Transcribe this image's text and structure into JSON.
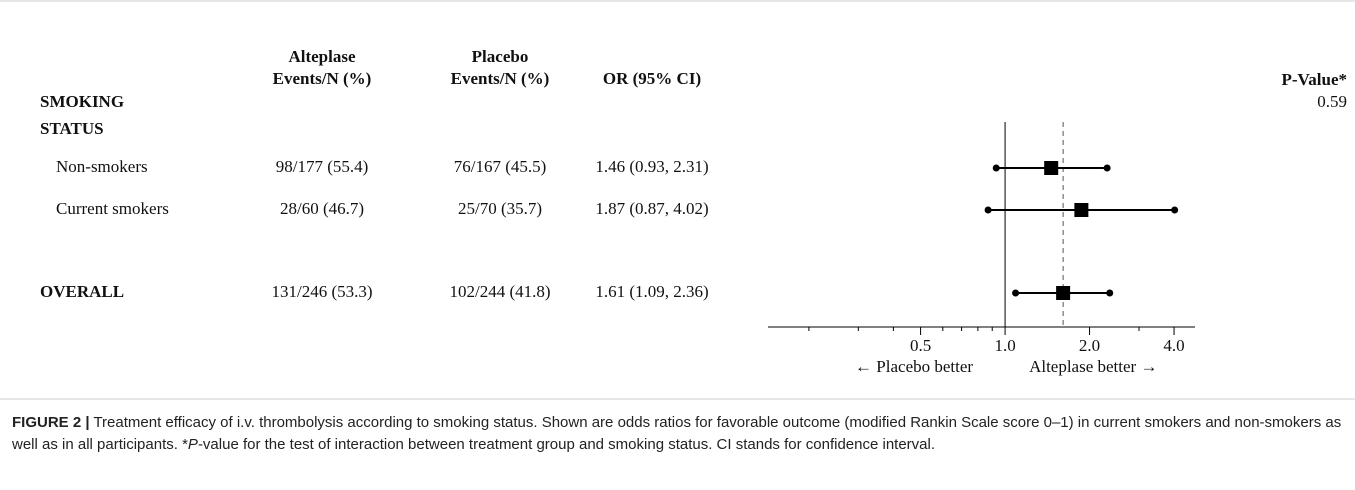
{
  "chart_data": {
    "type": "forest",
    "columns": [
      [
        "Alteplase",
        "Events/N (%)"
      ],
      [
        "Placebo",
        "Events/N (%)"
      ],
      [
        "OR (95% CI)"
      ]
    ],
    "p_value_header": "P-Value*",
    "group": {
      "lines": [
        "SMOKING",
        "STATUS"
      ],
      "p_value": 0.59
    },
    "rows": [
      {
        "label": "Non-smokers",
        "alteplase": "98/177 (55.4)",
        "placebo": "76/167 (45.5)",
        "or_label": "1.46 (0.93, 2.31)",
        "or": 1.46,
        "lo": 0.93,
        "hi": 2.31
      },
      {
        "label": "Current smokers",
        "alteplase": "28/60 (46.7)",
        "placebo": "25/70 (35.7)",
        "or_label": "1.87 (0.87, 4.02)",
        "or": 1.87,
        "lo": 0.87,
        "hi": 4.02
      }
    ],
    "overall": {
      "label": "OVERALL",
      "alteplase": "131/246 (53.3)",
      "placebo": "102/244 (41.8)",
      "or_label": "1.61 (1.09, 2.36)",
      "or": 1.61,
      "lo": 1.09,
      "hi": 2.36
    },
    "log_x": true,
    "xlim": [
      0.143,
      4.75
    ],
    "xticks": [
      0.5,
      {
        "value": 1,
        "label": "1.0"
      },
      {
        "value": 2,
        "label": "2.0"
      },
      {
        "value": 4,
        "label": "4.0"
      }
    ],
    "minor_xticks": [
      0.2,
      0.3,
      0.4,
      0.6,
      0.7,
      0.8,
      0.9,
      3
    ],
    "reference_line": 1,
    "left_note": "← Placebo better",
    "right_note": "Alteplase better →"
  },
  "caption": {
    "label": "FIGURE 2 |",
    "parts": [
      "Treatment efficacy of i.v. thrombolysis according to smoking status. Shown are odds ratios for favorable outcome (modified Rankin Scale score 0–1) in current smokers and non-smokers as well as in all participants. *",
      "P",
      "-value for the test of interaction between treatment group and smoking status. CI stands for confidence interval."
    ]
  }
}
